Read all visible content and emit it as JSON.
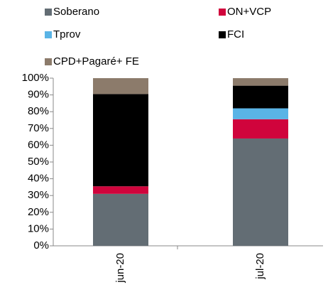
{
  "chart_data": {
    "type": "stacked_bar",
    "categories": [
      "jun-20",
      "jul-20"
    ],
    "series": [
      {
        "name": "Soberano",
        "color": "#636d74",
        "values": [
          31,
          64
        ]
      },
      {
        "name": "ON+VCP",
        "color": "#d0043c",
        "values": [
          4.5,
          11.5
        ]
      },
      {
        "name": "Tprov",
        "color": "#5ab4e6",
        "values": [
          0,
          6.5
        ]
      },
      {
        "name": "FCI",
        "color": "#000000",
        "values": [
          55,
          13.5
        ]
      },
      {
        "name": "CPD+Pagaré+ FE",
        "color": "#8c7b6b",
        "values": [
          9.5,
          4.5
        ]
      }
    ],
    "ylim": [
      0,
      100
    ],
    "yticks": [
      {
        "value": 0,
        "label": "0%"
      },
      {
        "value": 10,
        "label": "10%"
      },
      {
        "value": 20,
        "label": "20%"
      },
      {
        "value": 30,
        "label": "30%"
      },
      {
        "value": 40,
        "label": "40%"
      },
      {
        "value": 50,
        "label": "50%"
      },
      {
        "value": 60,
        "label": "60%"
      },
      {
        "value": 70,
        "label": "70%"
      },
      {
        "value": 80,
        "label": "80%"
      },
      {
        "value": 90,
        "label": "90%"
      },
      {
        "value": 100,
        "label": "100%"
      }
    ]
  }
}
